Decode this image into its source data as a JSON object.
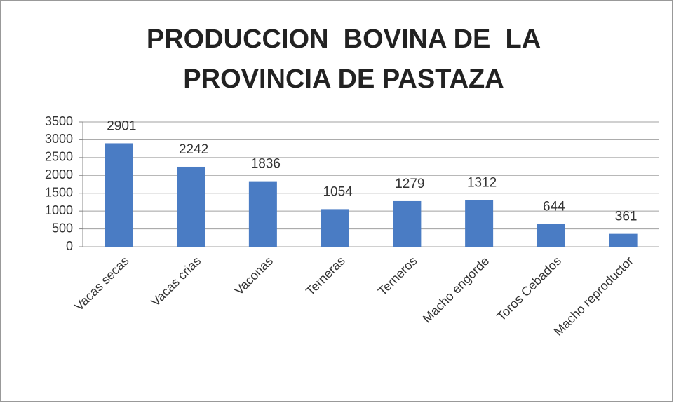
{
  "chart_data": {
    "type": "bar",
    "title": [
      "PRODUCCION  BOVINA DE  LA",
      "PROVINCIA DE PASTAZA"
    ],
    "categories": [
      "Vacas secas",
      "Vacas crias",
      "Vaconas",
      "Terneras",
      "Terneros",
      "Macho engorde",
      "Toros Cebados",
      "Macho reproductor"
    ],
    "values": [
      2901,
      2242,
      1836,
      1054,
      1279,
      1312,
      644,
      361
    ],
    "color": "#4a7cc4",
    "ylim": [
      0,
      3500
    ],
    "yticks": [
      0,
      500,
      1000,
      1500,
      2000,
      2500,
      3000,
      3500
    ],
    "grid": true
  }
}
